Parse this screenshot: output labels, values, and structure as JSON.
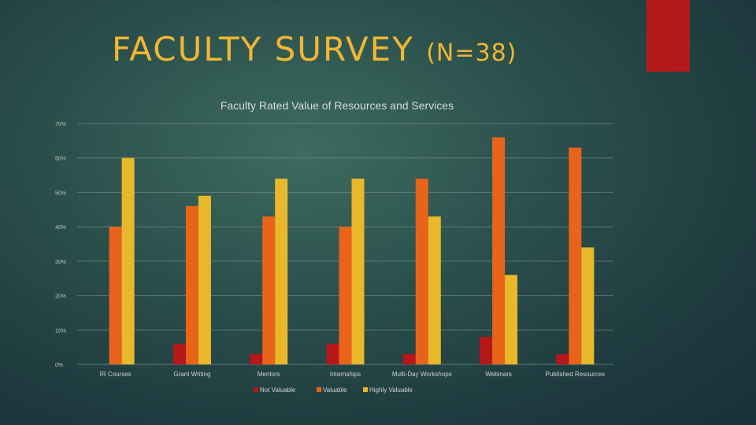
{
  "slide": {
    "title_main": "FACULTY SURVEY",
    "title_sub": "(N=38)",
    "accent_color": "#b31b1b",
    "title_color": "#f2b632"
  },
  "chart_data": {
    "type": "bar",
    "title": "Faculty Rated Value of Resources and Services",
    "xlabel": "",
    "ylabel": "",
    "ylim": [
      0,
      70
    ],
    "yticks": [
      "0%",
      "10%",
      "20%",
      "30%",
      "40%",
      "50%",
      "60%",
      "70%"
    ],
    "grid": true,
    "legend_position": "bottom",
    "categories": [
      "IR Courses",
      "Grant Writing",
      "Mentors",
      "Internships",
      "Multi-Day Workshops",
      "Webinars",
      "Published Resources"
    ],
    "series": [
      {
        "name": "Not Valuable",
        "color": "#b5171b",
        "values": [
          0,
          6,
          3,
          6,
          3,
          8,
          3
        ]
      },
      {
        "name": "Valuable",
        "color": "#e8641a",
        "values": [
          40,
          46,
          43,
          40,
          54,
          66,
          63
        ]
      },
      {
        "name": "Highly Valuable",
        "color": "#e8b82a",
        "values": [
          60,
          49,
          54,
          54,
          43,
          26,
          34
        ]
      }
    ]
  }
}
